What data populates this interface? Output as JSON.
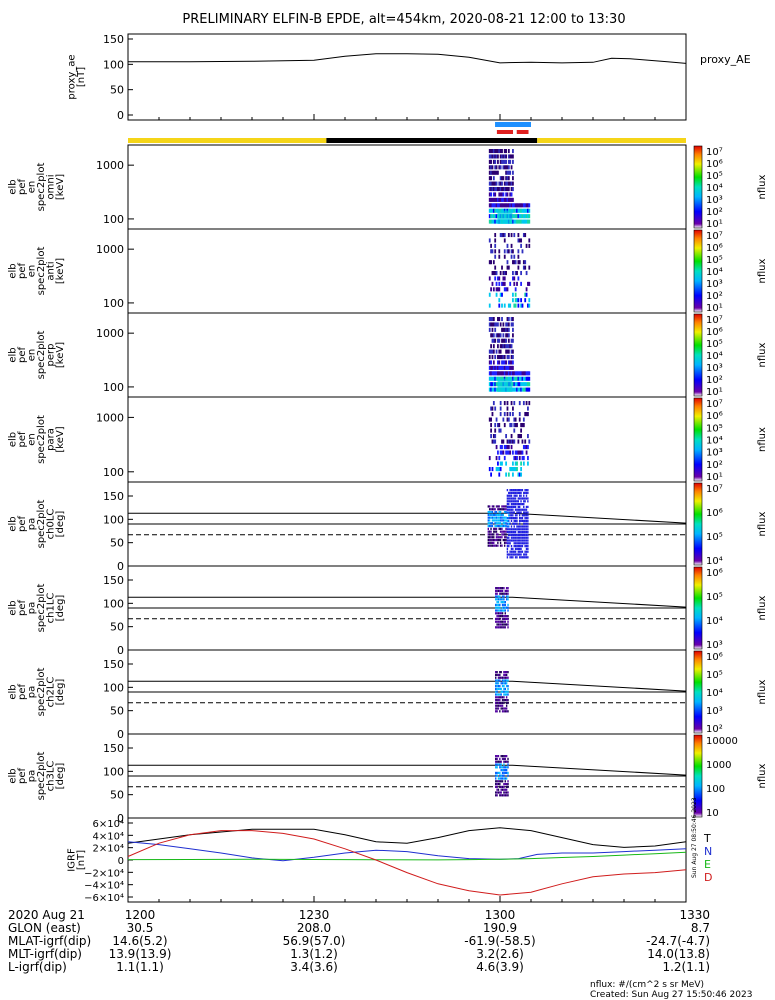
{
  "title": "PRELIMINARY ELFIN-B EPDE, alt=454km, 2020-08-21 12:00 to 13:30",
  "footer": {
    "units_note": "nflux: #/(cm^2 s sr MeV)",
    "created": "Created: Sun Aug 27 15:50:46 2023",
    "side_stamp": "Sun Aug 27 08:50:46 2023"
  },
  "chart_data": [
    {
      "type": "line",
      "name": "proxy_ae",
      "ylabel_lines": [
        "proxy_ae",
        "[nT]"
      ],
      "yticks": [
        "150",
        "100",
        "50",
        "0"
      ],
      "ylim": [
        0,
        150
      ],
      "legend": "proxy_AE",
      "x_minutes": [
        0,
        10,
        20,
        30,
        35,
        40,
        45,
        50,
        55,
        60,
        65,
        70,
        75,
        78,
        81,
        84,
        87,
        90
      ],
      "values": [
        105,
        105,
        106,
        108,
        116,
        121,
        121,
        120,
        114,
        103,
        104,
        103,
        104,
        112,
        111,
        108,
        105,
        102
      ]
    },
    {
      "type": "heatmap",
      "name": "spec2plot_omni",
      "ylabel_lines": [
        "elb",
        "pef",
        "en",
        "spec2plot",
        "omni",
        "[keV]"
      ],
      "yticks": [
        "1000",
        "100"
      ],
      "yscale": "log",
      "colorbar_ticks": [
        "10⁷",
        "10⁶",
        "10⁵",
        "10⁴",
        "10³",
        "10²",
        "10¹"
      ],
      "colorbar_label": "nflux"
    },
    {
      "type": "heatmap",
      "name": "spec2plot_anti",
      "ylabel_lines": [
        "elb",
        "pef",
        "en",
        "spec2plot",
        "anti",
        "[keV]"
      ],
      "yticks": [
        "1000",
        "100"
      ],
      "yscale": "log",
      "colorbar_ticks": [
        "10⁷",
        "10⁶",
        "10⁵",
        "10⁴",
        "10³",
        "10²",
        "10¹"
      ],
      "colorbar_label": "nflux"
    },
    {
      "type": "heatmap",
      "name": "spec2plot_perp",
      "ylabel_lines": [
        "elb",
        "pef",
        "en",
        "spec2plot",
        "perp",
        "[keV]"
      ],
      "yticks": [
        "1000",
        "100"
      ],
      "yscale": "log",
      "colorbar_ticks": [
        "10⁷",
        "10⁶",
        "10⁵",
        "10⁴",
        "10³",
        "10²",
        "10¹"
      ],
      "colorbar_label": "nflux"
    },
    {
      "type": "heatmap",
      "name": "spec2plot_para",
      "ylabel_lines": [
        "elb",
        "pef",
        "en",
        "spec2plot",
        "para",
        "[keV]"
      ],
      "yticks": [
        "1000",
        "100"
      ],
      "yscale": "log",
      "colorbar_ticks": [
        "10⁷",
        "10⁶",
        "10⁵",
        "10⁴",
        "10³",
        "10²",
        "10¹"
      ],
      "colorbar_label": "nflux"
    },
    {
      "type": "heatmap",
      "name": "spec2plot_ch0LC",
      "ylabel_lines": [
        "elb",
        "pef",
        "pa",
        "spec2plot",
        "ch0LC",
        "[deg]"
      ],
      "yticks": [
        "150",
        "100",
        "50",
        "0"
      ],
      "ylim": [
        0,
        180
      ],
      "colorbar_ticks": [
        "10⁷",
        "10⁶",
        "10⁵",
        "10⁴"
      ],
      "colorbar_label": "nflux"
    },
    {
      "type": "heatmap",
      "name": "spec2plot_ch1LC",
      "ylabel_lines": [
        "elb",
        "pef",
        "pa",
        "spec2plot",
        "ch1LC",
        "[deg]"
      ],
      "yticks": [
        "150",
        "100",
        "50",
        "0"
      ],
      "ylim": [
        0,
        180
      ],
      "colorbar_ticks": [
        "10⁶",
        "10⁵",
        "10⁴",
        "10³"
      ],
      "colorbar_label": "nflux"
    },
    {
      "type": "heatmap",
      "name": "spec2plot_ch2LC",
      "ylabel_lines": [
        "elb",
        "pef",
        "pa",
        "spec2plot",
        "ch2LC",
        "[deg]"
      ],
      "yticks": [
        "150",
        "100",
        "50",
        "0"
      ],
      "ylim": [
        0,
        180
      ],
      "colorbar_ticks": [
        "10⁶",
        "10⁵",
        "10⁴",
        "10³",
        "10²"
      ],
      "colorbar_label": "nflux"
    },
    {
      "type": "heatmap",
      "name": "spec2plot_ch3LC",
      "ylabel_lines": [
        "elb",
        "pef",
        "pa",
        "spec2plot",
        "ch3LC",
        "[deg]"
      ],
      "yticks": [
        "150",
        "100",
        "50",
        "0"
      ],
      "ylim": [
        0,
        180
      ],
      "colorbar_ticks": [
        "10000",
        "1000",
        "100",
        "10"
      ],
      "colorbar_label": "nflux"
    },
    {
      "type": "line",
      "name": "IGRF",
      "ylabel_lines": [
        "IGRF",
        "[nT]"
      ],
      "yticks": [
        "6×10⁴",
        "4×10⁴",
        "2×10⁴",
        "0",
        "−2×10⁴",
        "−4×10⁴",
        "−6×10⁴"
      ],
      "ylim": [
        -60000,
        60000
      ],
      "legend": [
        "T",
        "N",
        "E",
        "D"
      ],
      "series": [
        {
          "name": "T",
          "color": "#000000",
          "x_minutes": [
            0,
            10,
            20,
            30,
            35,
            40,
            45,
            50,
            55,
            60,
            65,
            70,
            75,
            80,
            85,
            90
          ],
          "values": [
            24000,
            36000,
            44000,
            44000,
            36000,
            26000,
            24000,
            32000,
            42000,
            46000,
            42000,
            32000,
            22000,
            18000,
            20000,
            26000
          ]
        },
        {
          "name": "N",
          "color": "#1f2fd0",
          "x_minutes": [
            0,
            5,
            10,
            15,
            20,
            25,
            30,
            35,
            40,
            45,
            50,
            55,
            60,
            63,
            66,
            70,
            75,
            80,
            85,
            90
          ],
          "values": [
            26000,
            22000,
            16000,
            10000,
            3000,
            -1000,
            4000,
            10000,
            14000,
            12000,
            6000,
            2000,
            1000,
            2000,
            8000,
            10000,
            10000,
            12000,
            14000,
            16000
          ]
        },
        {
          "name": "E",
          "color": "#18b818",
          "x_minutes": [
            0,
            10,
            20,
            30,
            40,
            50,
            55,
            60,
            65,
            70,
            75,
            80,
            85,
            90
          ],
          "values": [
            500,
            800,
            1000,
            800,
            400,
            200,
            500,
            1000,
            2000,
            3500,
            5000,
            7000,
            9000,
            11000
          ]
        },
        {
          "name": "D",
          "color": "#d01c1c",
          "x_minutes": [
            0,
            5,
            10,
            15,
            20,
            25,
            30,
            35,
            40,
            45,
            50,
            55,
            60,
            65,
            70,
            75,
            80,
            85,
            90
          ],
          "values": [
            5000,
            24000,
            36000,
            42000,
            42000,
            38000,
            30000,
            16000,
            0,
            -18000,
            -34000,
            -44000,
            -50000,
            -46000,
            -34000,
            -24000,
            -20000,
            -18000,
            -14000
          ]
        }
      ]
    }
  ],
  "x_axis": {
    "row_labels": [
      "2020 Aug 21",
      "GLON (east)",
      "MLAT-igrf(dip)",
      "MLT-igrf(dip)",
      "L-igrf(dip)"
    ],
    "ticks": [
      {
        "time": "1200",
        "glon": "30.5",
        "mlat": "14.6(5.2)",
        "mlt": "13.9(13.9)",
        "l": "1.1(1.1)"
      },
      {
        "time": "1230",
        "glon": "208.0",
        "mlat": "56.9(57.0)",
        "mlt": "1.3(1.2)",
        "l": "3.4(3.6)"
      },
      {
        "time": "1300",
        "glon": "190.9",
        "mlat": "-61.9(-58.5)",
        "mlt": "3.2(2.6)",
        "l": "4.6(3.9)"
      },
      {
        "time": "1330",
        "glon": "8.7",
        "mlat": "-24.7(-4.7)",
        "mlt": "14.0(13.8)",
        "l": "1.2(1.1)"
      }
    ]
  },
  "colors": {
    "day_bar": "#f5d518",
    "night_bar": "#000000",
    "blue_bar": "#1e90ff",
    "red_bar": "#e02020"
  }
}
